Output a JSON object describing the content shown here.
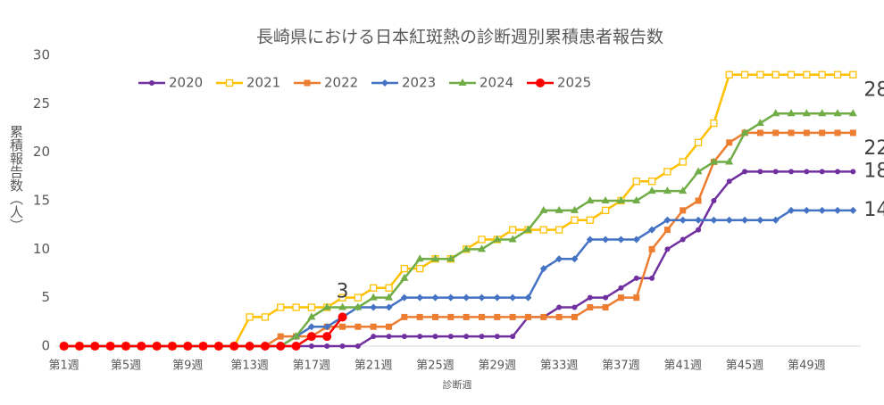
{
  "chart_data": {
    "type": "line",
    "title": "長崎県における日本紅斑熱の診断週別累積患者報告数",
    "x_label": "診断週",
    "y_label": "累積報告数（人）",
    "categories": [
      "第1週",
      null,
      null,
      null,
      "第5週",
      null,
      null,
      null,
      "第9週",
      null,
      null,
      null,
      "第13週",
      null,
      null,
      null,
      "第17週",
      null,
      null,
      null,
      "第21週",
      null,
      null,
      null,
      "第25週",
      null,
      null,
      null,
      "第29週",
      null,
      null,
      null,
      "第33週",
      null,
      null,
      null,
      "第37週",
      null,
      null,
      null,
      "第41週",
      null,
      null,
      null,
      "第45週",
      null,
      null,
      null,
      "第49週",
      null,
      null,
      null
    ],
    "ylim": [
      0,
      30
    ],
    "yticks": [
      0,
      5,
      10,
      15,
      20,
      25,
      30
    ],
    "grid": false,
    "legend": "top",
    "series": [
      {
        "name": "2020",
        "color": "#7030a0",
        "marker": "circle",
        "end_label": true,
        "values": [
          0,
          0,
          0,
          0,
          0,
          0,
          0,
          0,
          0,
          0,
          0,
          0,
          0,
          0,
          0,
          0,
          0,
          0,
          0,
          0,
          1,
          1,
          1,
          1,
          1,
          1,
          1,
          1,
          1,
          1,
          3,
          3,
          4,
          4,
          5,
          5,
          6,
          7,
          7,
          10,
          11,
          12,
          15,
          17,
          18,
          18,
          18,
          18,
          18,
          18,
          18,
          18
        ]
      },
      {
        "name": "2021",
        "color": "#ffc000",
        "marker": "open-square",
        "end_label": true,
        "values": [
          0,
          0,
          0,
          0,
          0,
          0,
          0,
          0,
          0,
          0,
          0,
          0,
          3,
          3,
          4,
          4,
          4,
          4,
          5,
          5,
          6,
          6,
          8,
          8,
          9,
          9,
          10,
          11,
          11,
          12,
          12,
          12,
          12,
          13,
          13,
          14,
          15,
          17,
          17,
          18,
          19,
          21,
          23,
          28,
          28,
          28,
          28,
          28,
          28,
          28,
          28,
          28
        ]
      },
      {
        "name": "2022",
        "color": "#ed7d31",
        "marker": "square",
        "end_label": true,
        "values": [
          0,
          0,
          0,
          0,
          0,
          0,
          0,
          0,
          0,
          0,
          0,
          0,
          0,
          0,
          1,
          1,
          1,
          2,
          2,
          2,
          2,
          2,
          3,
          3,
          3,
          3,
          3,
          3,
          3,
          3,
          3,
          3,
          3,
          3,
          4,
          4,
          5,
          5,
          10,
          12,
          14,
          15,
          19,
          21,
          22,
          22,
          22,
          22,
          22,
          22,
          22,
          22
        ]
      },
      {
        "name": "2023",
        "color": "#4472c4",
        "marker": "diamond",
        "end_label": true,
        "values": [
          0,
          0,
          0,
          0,
          0,
          0,
          0,
          0,
          0,
          0,
          0,
          0,
          0,
          0,
          0,
          1,
          2,
          2,
          3,
          4,
          4,
          4,
          5,
          5,
          5,
          5,
          5,
          5,
          5,
          5,
          5,
          8,
          9,
          9,
          11,
          11,
          11,
          11,
          12,
          13,
          13,
          13,
          13,
          13,
          13,
          13,
          13,
          14,
          14,
          14,
          14,
          14
        ]
      },
      {
        "name": "2024",
        "color": "#70ad47",
        "marker": "triangle",
        "end_label": false,
        "values": [
          0,
          0,
          0,
          0,
          0,
          0,
          0,
          0,
          0,
          0,
          0,
          0,
          0,
          0,
          0,
          1,
          3,
          4,
          4,
          4,
          5,
          5,
          7,
          9,
          9,
          9,
          10,
          10,
          11,
          11,
          12,
          14,
          14,
          14,
          15,
          15,
          15,
          15,
          16,
          16,
          16,
          18,
          19,
          19,
          22,
          23,
          24,
          24,
          24,
          24,
          24,
          24
        ]
      },
      {
        "name": "2025",
        "color": "#ff0000",
        "marker": "big-circle",
        "end_label": true,
        "values": [
          0,
          0,
          0,
          0,
          0,
          0,
          0,
          0,
          0,
          0,
          0,
          0,
          0,
          0,
          0,
          0,
          1,
          1,
          3,
          null,
          null,
          null,
          null,
          null,
          null,
          null,
          null,
          null,
          null,
          null,
          null,
          null,
          null,
          null,
          null,
          null,
          null,
          null,
          null,
          null,
          null,
          null,
          null,
          null,
          null,
          null,
          null,
          null,
          null,
          null,
          null,
          null
        ]
      }
    ]
  }
}
